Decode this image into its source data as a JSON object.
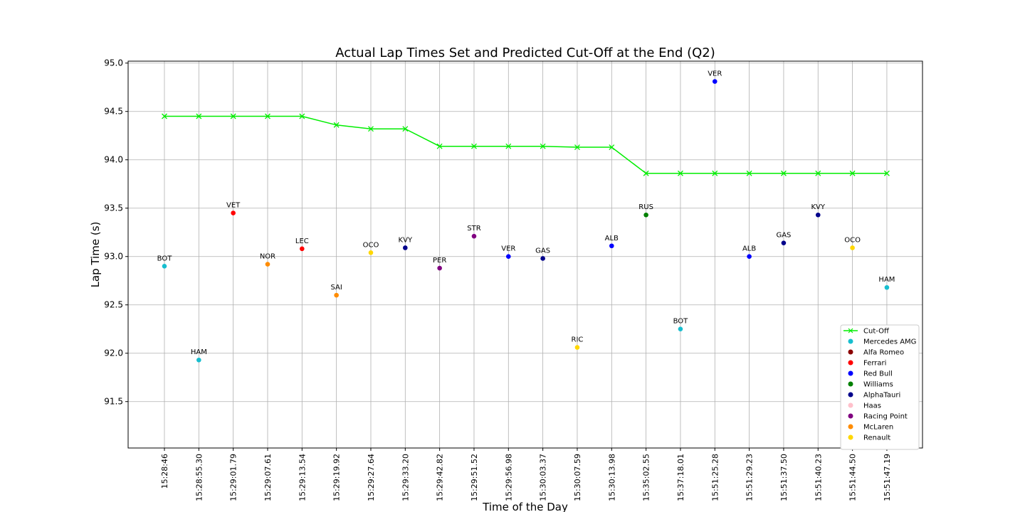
{
  "chart_data": {
    "type": "scatter",
    "title": "Actual Lap Times Set and Predicted Cut-Off at the End (Q2)",
    "xlabel": "Time of the Day",
    "ylabel": "Lap Time (s)",
    "ylim": [
      91.02,
      95.02
    ],
    "yticks": [
      "91.5",
      "92.0",
      "92.5",
      "93.0",
      "93.5",
      "94.0",
      "94.5",
      "95.0"
    ],
    "grid": true,
    "legend_position": "lower-right",
    "categories": [
      "15:28:46",
      "15:28:55.30",
      "15:29:01.79",
      "15:29:07.61",
      "15:29:13.54",
      "15:29:19.92",
      "15:29:27.64",
      "15:29:33.20",
      "15:29:42.82",
      "15:29:51.52",
      "15:29:56.98",
      "15:30:03.37",
      "15:30:07.59",
      "15:30:13.98",
      "15:35:02.55",
      "15:37:18.01",
      "15:51:25.28",
      "15:51:29.23",
      "15:51:37.50",
      "15:51:40.23",
      "15:51:44.50",
      "15:51:47.19"
    ],
    "cutoff": {
      "name": "Cut-Off",
      "color": "#00ee00",
      "values": [
        94.45,
        94.45,
        94.45,
        94.45,
        94.45,
        94.36,
        94.32,
        94.32,
        94.14,
        94.14,
        94.14,
        94.14,
        94.13,
        94.13,
        93.86,
        93.86,
        93.86,
        93.86,
        93.86,
        93.86,
        93.86,
        93.86
      ]
    },
    "points": [
      {
        "driver": "BOT",
        "team": "Mercedes AMG",
        "value": 92.9
      },
      {
        "driver": "HAM",
        "team": "Mercedes AMG",
        "value": 91.93
      },
      {
        "driver": "VET",
        "team": "Ferrari",
        "value": 93.45
      },
      {
        "driver": "NOR",
        "team": "McLaren",
        "value": 92.92
      },
      {
        "driver": "LEC",
        "team": "Ferrari",
        "value": 93.08
      },
      {
        "driver": "SAI",
        "team": "McLaren",
        "value": 92.6
      },
      {
        "driver": "OCO",
        "team": "Renault",
        "value": 93.04
      },
      {
        "driver": "KVY",
        "team": "AlphaTauri",
        "value": 93.09
      },
      {
        "driver": "PER",
        "team": "Racing Point",
        "value": 92.88
      },
      {
        "driver": "STR",
        "team": "Racing Point",
        "value": 93.21
      },
      {
        "driver": "VER",
        "team": "Red Bull",
        "value": 93.0
      },
      {
        "driver": "GAS",
        "team": "AlphaTauri",
        "value": 92.98
      },
      {
        "driver": "RIC",
        "team": "Renault",
        "value": 92.06
      },
      {
        "driver": "ALB",
        "team": "Red Bull",
        "value": 93.11
      },
      {
        "driver": "RUS",
        "team": "Williams",
        "value": 93.43
      },
      {
        "driver": "BOT",
        "team": "Mercedes AMG",
        "value": 92.25
      },
      {
        "driver": "VER",
        "team": "Red Bull",
        "value": 94.81
      },
      {
        "driver": "ALB",
        "team": "Red Bull",
        "value": 93.0
      },
      {
        "driver": "GAS",
        "team": "AlphaTauri",
        "value": 93.14
      },
      {
        "driver": "KVY",
        "team": "AlphaTauri",
        "value": 93.43
      },
      {
        "driver": "OCO",
        "team": "Renault",
        "value": 93.09
      },
      {
        "driver": "HAM",
        "team": "Mercedes AMG",
        "value": 92.68
      }
    ],
    "legend": [
      {
        "label": "Cut-Off",
        "kind": "line",
        "color": "#00ee00"
      },
      {
        "label": "Mercedes AMG",
        "kind": "dot",
        "color": "#17becf"
      },
      {
        "label": "Alfa Romeo",
        "kind": "dot",
        "color": "#8b0000"
      },
      {
        "label": "Ferrari",
        "kind": "dot",
        "color": "#ff0000"
      },
      {
        "label": "Red Bull",
        "kind": "dot",
        "color": "#0000ff"
      },
      {
        "label": "Williams",
        "kind": "dot",
        "color": "#008000"
      },
      {
        "label": "AlphaTauri",
        "kind": "dot",
        "color": "#00008b"
      },
      {
        "label": "Haas",
        "kind": "dot",
        "color": "#ffc0cb"
      },
      {
        "label": "Racing Point",
        "kind": "dot",
        "color": "#800080"
      },
      {
        "label": "McLaren",
        "kind": "dot",
        "color": "#ff8c00"
      },
      {
        "label": "Renault",
        "kind": "dot",
        "color": "#ffd700"
      }
    ]
  }
}
